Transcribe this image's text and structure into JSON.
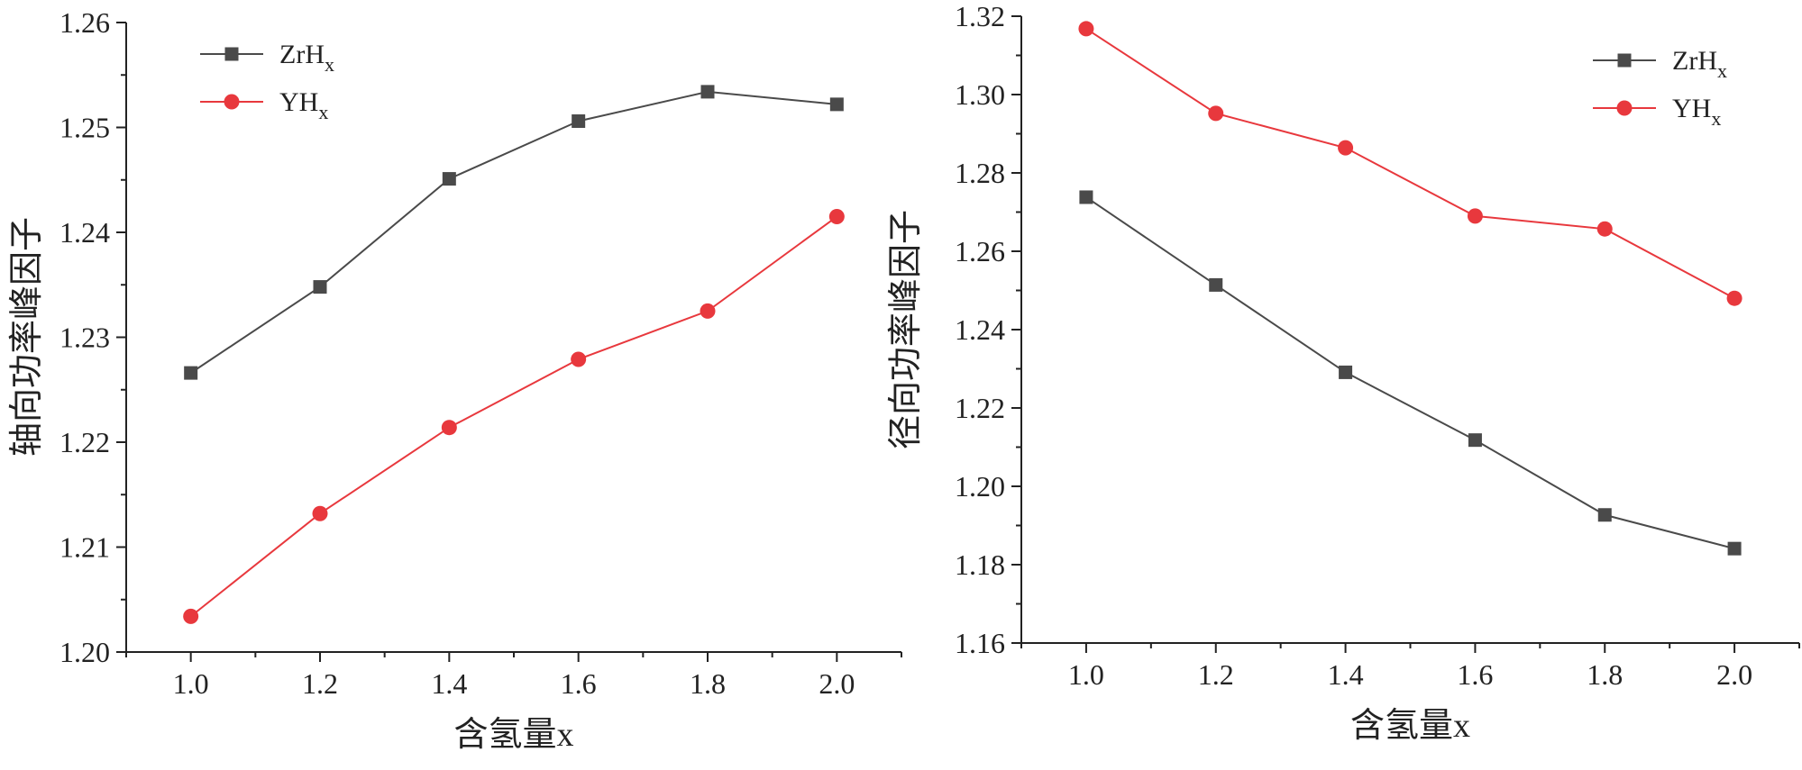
{
  "chart_data": [
    {
      "type": "line",
      "xlabel": "含氢量x",
      "ylabel": "轴向功率峰因子",
      "x": [
        1.0,
        1.2,
        1.4,
        1.6,
        1.8,
        2.0
      ],
      "xticks": [
        "1.0",
        "1.2",
        "1.4",
        "1.6",
        "1.8",
        "2.0"
      ],
      "xlim": [
        0.9,
        2.1
      ],
      "yticks": [
        "1.20",
        "1.21",
        "1.22",
        "1.23",
        "1.24",
        "1.25",
        "1.26"
      ],
      "ylim": [
        1.2,
        1.26
      ],
      "legend_position": "top-left",
      "series": [
        {
          "name": "ZrH",
          "sub": "x",
          "marker": "square",
          "color": "#4a4a4a",
          "values": [
            1.2266,
            1.2348,
            1.2451,
            1.2506,
            1.2534,
            1.2522
          ]
        },
        {
          "name": "YH",
          "sub": "x",
          "marker": "circle",
          "color": "#e8383d",
          "values": [
            1.2034,
            1.2132,
            1.2214,
            1.2279,
            1.2325,
            1.2415
          ]
        }
      ]
    },
    {
      "type": "line",
      "xlabel": "含氢量x",
      "ylabel": "径向功率峰因子",
      "x": [
        1.0,
        1.2,
        1.4,
        1.6,
        1.8,
        2.0
      ],
      "xticks": [
        "1.0",
        "1.2",
        "1.4",
        "1.6",
        "1.8",
        "2.0"
      ],
      "xlim": [
        0.9,
        2.1
      ],
      "yticks": [
        "1.16",
        "1.18",
        "1.20",
        "1.22",
        "1.24",
        "1.26",
        "1.28",
        "1.30",
        "1.32"
      ],
      "ylim": [
        1.16,
        1.32
      ],
      "legend_position": "top-right",
      "series": [
        {
          "name": "ZrH",
          "sub": "x",
          "marker": "square",
          "color": "#4a4a4a",
          "values": [
            1.2738,
            1.2514,
            1.2291,
            1.2118,
            1.1927,
            1.1841
          ]
        },
        {
          "name": "YH",
          "sub": "x",
          "marker": "circle",
          "color": "#e8383d",
          "values": [
            1.3168,
            1.2952,
            1.2864,
            1.269,
            1.2657,
            1.248
          ]
        }
      ]
    }
  ]
}
